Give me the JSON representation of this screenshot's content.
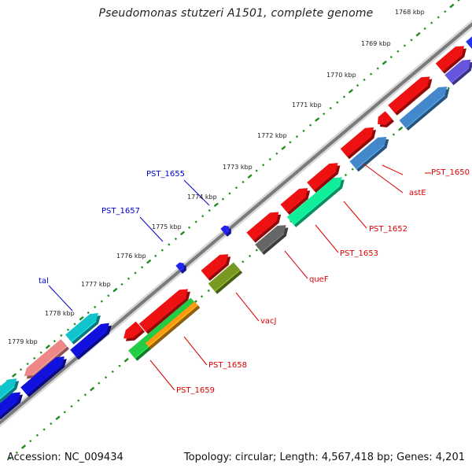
{
  "title": "Pseudomonas stutzeri A1501, complete genome",
  "footer": {
    "accession": "Accession: NC_009434",
    "summary": "Topology: circular; Length: 4,567,418 bp; Genes: 4,201"
  },
  "colors": {
    "backbone": "#7a7a7a",
    "ticks": "#1e8c1e",
    "forward_label": "#0000cc",
    "reverse_label": "#dd0000"
  },
  "scale_labels": [
    "1768 kbp",
    "1769 kbp",
    "1770 kbp",
    "1771 kbp",
    "1772 kbp",
    "1773 kbp",
    "1774 kbp",
    "1775 kbp",
    "1776 kbp",
    "1777 kbp",
    "1778 kbp",
    "1779 kbp"
  ],
  "gene_labels_forward": [
    "PST_1655",
    "PST_1657",
    "tal"
  ],
  "gene_labels_reverse": [
    "PST_1650",
    "astE",
    "PST_1652",
    "PST_1653",
    "queF",
    "vacJ",
    "PST_1658",
    "PST_1659"
  ]
}
